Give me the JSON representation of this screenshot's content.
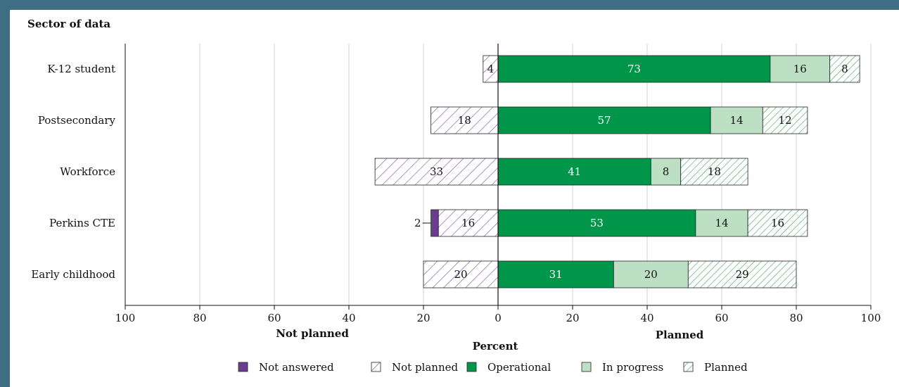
{
  "chart_data": {
    "type": "bar",
    "orientation": "horizontal-diverging",
    "y_axis_title": "Sector of data",
    "xlabel": "Percent",
    "left_side_label": "Not planned",
    "right_side_label": "Planned",
    "xlim": [
      -100,
      100
    ],
    "x_ticks": [
      -100,
      -80,
      -60,
      -40,
      -20,
      0,
      20,
      40,
      60,
      80,
      100
    ],
    "x_tick_labels": [
      "100",
      "80",
      "60",
      "40",
      "20",
      "0",
      "20",
      "40",
      "60",
      "80",
      "100"
    ],
    "grid": true,
    "legend_position": "bottom",
    "categories": [
      "K-12 student",
      "Postsecondary",
      "Workforce",
      "Perkins CTE",
      "Early childhood"
    ],
    "series": [
      {
        "name": "Not answered",
        "side": "left",
        "pattern": "solid",
        "color": "#6a3d8f",
        "values": [
          0,
          0,
          0,
          2,
          0
        ]
      },
      {
        "name": "Not planned",
        "side": "left",
        "pattern": "hatch",
        "color": "#7b4e9a",
        "values": [
          4,
          18,
          33,
          16,
          20
        ]
      },
      {
        "name": "Operational",
        "side": "right",
        "pattern": "solid",
        "color": "#00964a",
        "values": [
          73,
          57,
          41,
          53,
          31
        ]
      },
      {
        "name": "In progress",
        "side": "right",
        "pattern": "solid",
        "color": "#bde0c4",
        "values": [
          16,
          14,
          8,
          14,
          20
        ]
      },
      {
        "name": "Planned",
        "side": "right",
        "pattern": "hatch",
        "color": "#2e9b55",
        "values": [
          8,
          12,
          18,
          16,
          29
        ]
      }
    ]
  }
}
